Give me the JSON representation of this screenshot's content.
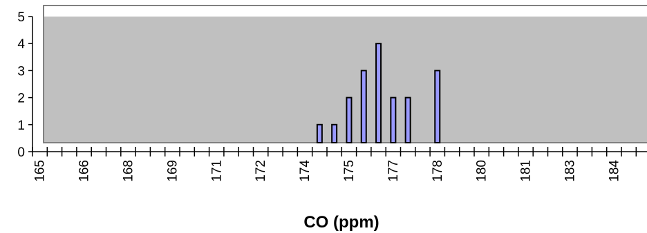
{
  "chart_data": {
    "type": "bar",
    "xlabel": "CO (ppm)",
    "ylabel": "",
    "ylim": [
      0,
      5
    ],
    "yticks": [
      0,
      1,
      2,
      3,
      4,
      5
    ],
    "xtick_labels": [
      "165",
      "166",
      "168",
      "169",
      "171",
      "172",
      "174",
      "175",
      "177",
      "178",
      "180",
      "181",
      "183",
      "184"
    ],
    "bin_count": 42,
    "bars": [
      {
        "bin": 19,
        "value": 1
      },
      {
        "bin": 20,
        "value": 1
      },
      {
        "bin": 21,
        "value": 2
      },
      {
        "bin": 22,
        "value": 3
      },
      {
        "bin": 23,
        "value": 4
      },
      {
        "bin": 24,
        "value": 2
      },
      {
        "bin": 25,
        "value": 2
      },
      {
        "bin": 27,
        "value": 3
      }
    ],
    "grid": false,
    "legend": "none",
    "colors": {
      "plot_background": "#c0c0c0",
      "bar_fill": "#9999ff",
      "bar_stroke": "#000000",
      "plot_border": "#808080"
    }
  }
}
